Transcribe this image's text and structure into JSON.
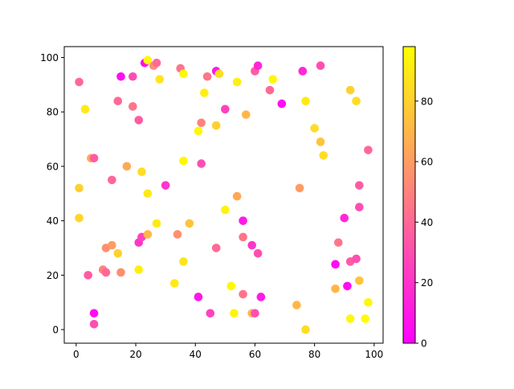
{
  "chart_data": {
    "type": "scatter",
    "title": "",
    "xlabel": "",
    "ylabel": "",
    "xlim": [
      -4,
      103
    ],
    "ylim": [
      -5,
      104
    ],
    "xticks": [
      "0",
      "20",
      "40",
      "60",
      "80",
      "100"
    ],
    "yticks": [
      "0",
      "20",
      "40",
      "60",
      "80",
      "100"
    ],
    "grid": false,
    "colormap": "spring",
    "colormap_colors": {
      "low": "#ff00ff",
      "high": "#ffff00"
    },
    "colorbar": {
      "range": [
        0,
        98
      ],
      "ticks": [
        "0",
        "20",
        "40",
        "60",
        "80"
      ],
      "placement": "right"
    },
    "points": [
      [
        1,
        91,
        40
      ],
      [
        3,
        81,
        90
      ],
      [
        1,
        52,
        80
      ],
      [
        1,
        41,
        82
      ],
      [
        5,
        63,
        65
      ],
      [
        6,
        63,
        35
      ],
      [
        4,
        20,
        35
      ],
      [
        6,
        6,
        5
      ],
      [
        6,
        2,
        30
      ],
      [
        9,
        22,
        50
      ],
      [
        10,
        21,
        40
      ],
      [
        10,
        30,
        55
      ],
      [
        12,
        31,
        60
      ],
      [
        12,
        55,
        40
      ],
      [
        14,
        84,
        40
      ],
      [
        14,
        28,
        80
      ],
      [
        15,
        93,
        5
      ],
      [
        15,
        21,
        55
      ],
      [
        17,
        60,
        65
      ],
      [
        19,
        93,
        30
      ],
      [
        19,
        82,
        45
      ],
      [
        21,
        77,
        35
      ],
      [
        21,
        32,
        20
      ],
      [
        21,
        22,
        92
      ],
      [
        22,
        58,
        85
      ],
      [
        22,
        34,
        25
      ],
      [
        23,
        98,
        5
      ],
      [
        24,
        99,
        95
      ],
      [
        24,
        50,
        90
      ],
      [
        24,
        35,
        70
      ],
      [
        26,
        97,
        55
      ],
      [
        27,
        98,
        40
      ],
      [
        27,
        39,
        90
      ],
      [
        28,
        92,
        88
      ],
      [
        30,
        53,
        20
      ],
      [
        33,
        17,
        90
      ],
      [
        34,
        35,
        55
      ],
      [
        35,
        96,
        45
      ],
      [
        36,
        94,
        95
      ],
      [
        36,
        62,
        95
      ],
      [
        36,
        25,
        88
      ],
      [
        38,
        39,
        75
      ],
      [
        41,
        73,
        95
      ],
      [
        41,
        12,
        8
      ],
      [
        42,
        76,
        50
      ],
      [
        42,
        61,
        30
      ],
      [
        43,
        87,
        92
      ],
      [
        44,
        93,
        45
      ],
      [
        45,
        6,
        25
      ],
      [
        47,
        75,
        80
      ],
      [
        47,
        95,
        10
      ],
      [
        48,
        94,
        85
      ],
      [
        47,
        30,
        40
      ],
      [
        50,
        44,
        93
      ],
      [
        50,
        81,
        25
      ],
      [
        52,
        16,
        95
      ],
      [
        53,
        6,
        93
      ],
      [
        54,
        91,
        92
      ],
      [
        54,
        49,
        65
      ],
      [
        56,
        40,
        10
      ],
      [
        56,
        34,
        45
      ],
      [
        56,
        13,
        45
      ],
      [
        57,
        79,
        70
      ],
      [
        59,
        31,
        20
      ],
      [
        59,
        6,
        70
      ],
      [
        60,
        6,
        30
      ],
      [
        60,
        95,
        35
      ],
      [
        61,
        97,
        15
      ],
      [
        61,
        28,
        30
      ],
      [
        62,
        12,
        10
      ],
      [
        65,
        88,
        40
      ],
      [
        66,
        92,
        95
      ],
      [
        69,
        83,
        5
      ],
      [
        74,
        9,
        70
      ],
      [
        75,
        52,
        60
      ],
      [
        76,
        95,
        15
      ],
      [
        77,
        84,
        90
      ],
      [
        77,
        0,
        85
      ],
      [
        80,
        74,
        85
      ],
      [
        82,
        69,
        75
      ],
      [
        82,
        97,
        30
      ],
      [
        83,
        64,
        85
      ],
      [
        87,
        15,
        70
      ],
      [
        87,
        24,
        5
      ],
      [
        88,
        32,
        45
      ],
      [
        90,
        41,
        15
      ],
      [
        91,
        16,
        5
      ],
      [
        92,
        88,
        80
      ],
      [
        92,
        25,
        35
      ],
      [
        92,
        4,
        95
      ],
      [
        94,
        84,
        85
      ],
      [
        94,
        26,
        30
      ],
      [
        95,
        18,
        75
      ],
      [
        95,
        53,
        35
      ],
      [
        95,
        45,
        30
      ],
      [
        97,
        4,
        97
      ],
      [
        98,
        66,
        40
      ],
      [
        98,
        10,
        95
      ]
    ]
  }
}
